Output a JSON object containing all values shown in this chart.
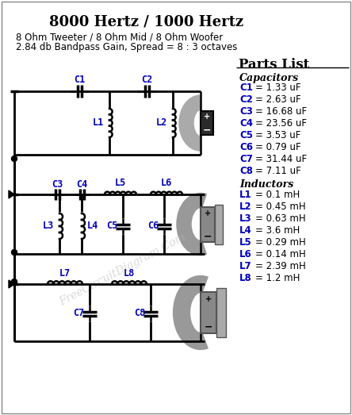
{
  "title": "8000 Hertz / 1000 Hertz",
  "subtitle1": "8 Ohm Tweeter / 8 Ohm Mid / 8 Ohm Woofer",
  "subtitle2": "2.84 db Bandpass Gain, Spread = 8 : 3 octaves",
  "parts_list_title": "Parts List",
  "capacitors_title": "Capacitors",
  "inductors_title": "Inductors",
  "capacitors": [
    [
      "C1",
      "= 1.33 uF"
    ],
    [
      "C2",
      "= 2.63 uF"
    ],
    [
      "C3",
      "= 16.68 uF"
    ],
    [
      "C4",
      "= 23.56 uF"
    ],
    [
      "C5",
      "= 3.53 uF"
    ],
    [
      "C6",
      "= 0.79 uF"
    ],
    [
      "C7",
      "= 31.44 uF"
    ],
    [
      "C8",
      "= 7.11 uF"
    ]
  ],
  "inductors": [
    [
      "L1",
      "= 0.1 mH"
    ],
    [
      "L2",
      "= 0.45 mH"
    ],
    [
      "L3",
      "= 0.63 mH"
    ],
    [
      "L4",
      "= 3.6 mH"
    ],
    [
      "L5",
      "= 0.29 mH"
    ],
    [
      "L6",
      "= 0.14 mH"
    ],
    [
      "L7",
      "= 2.39 mH"
    ],
    [
      "L8",
      "= 1.2 mH"
    ]
  ],
  "bg_color": "#ffffff",
  "line_color": "#000000",
  "blue_color": "#0000bb",
  "watermark": "FreeCircuitDiagram.Com",
  "figsize": [
    4.44,
    5.23
  ],
  "dpi": 100
}
